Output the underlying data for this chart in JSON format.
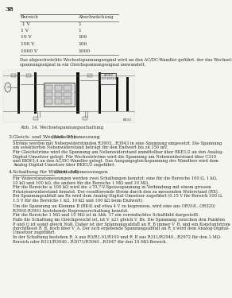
{
  "page_number": "38",
  "bg_color": "#f5f5f0",
  "text_color": "#2a2a2a",
  "table": {
    "header": [
      "Bereich",
      "Abschwächung"
    ],
    "rows": [
      [
        ".1 V",
        "1"
      ],
      [
        "1 V",
        "1"
      ],
      [
        "10 V",
        "100"
      ],
      [
        "100 V",
        "100"
      ],
      [
        "1000 V",
        "1000"
      ]
    ]
  },
  "paragraph1": "Das abgeschwächte Wechselspannungssignal wird an den AC/DC-Wandler geführt, der das Wechsel-\nspannungssignal in ein Gleichspannungssignal umwandelt.",
  "figure_caption": "Abb. 14. Wechselspannungsschaltung",
  "section3_title": "Gleich- und Wechselstrommessung",
  "section3_ref": "(Abb. 35)",
  "section3_text": "Ströme werden mit Nebenwiderständen R3903...R3943 in eine Spannung umgesetzt. Die Spannung\nam selektierten Nebenwiderstand beträgt für den Endwert bis zu 150 mV.\nFür Gleichströme wird die Spannung am Nebenwiderstand unmittelbar über BKE1/2 an den Analog-\nDigital-Umsetzer gelegt. Für Wechselströme wird die Spannung am Nebenwiderstand über C310\nund BKW3,4 an den AC/DC-Wandler gelegt. Das Ausgangsgleichspannung des Wandlers wird dem\nAnalog-Digital-Umsetzer über BKE1/2 zugeführt.",
  "section4_title": "Schaltung für Widerstandsmessungen",
  "section4_ref": "(Abb. 14)",
  "section4_text1": "Für Widerstandsmessungen werden zwei Schaltungen benutzt: eine für die Bereiche 100 Ω, 1 kΩ,\n10 kΩ und 100 kΩ, die andere für die Bereiche 1 MΩ und 10 MΩ.\nFür die Bereiche ≤ 100 kΩ wird die +70,7-V-Speisespannung in Verbindung mit einem grossen\nPräzisionswiderstand benutzt. Der resultierende Strom durch den zu messenden Widerstand (RX).\nBei Spannungsabfall am Rx wird dem Analog-Digital-Umsetzer zugeführt (0.15 V für Bereich 100 Ω,\n1.5 V für die Bereiche 1 kΩ, 10 kΩ und 100 kΩ beim Endwert).",
  "section4_text2": "Um die Spannung an Klemme B (BK4) auf etwa 4 V zu begrenzen, wird eine aus OR318...OR320/\nR3960-R3961 bestehende Begrenzerschaltung benutzt.\nFür die Bereiche 1 MΩ und 10 MΩ ist in Abb. 17 ein vereinfachtes Schaltbild dargestellt.\nFalls die Schaltung im Gleichgewicht ist, ist V_x21 gleich V_Bx. Die Spannung zwischen den Punkten\nP und Q ist somit gleich Null. Daher ist der Spannungsabfall an R_B immer V_B, und ein Konstantstrom\ndurchfliesst R_B, noch über V_A. Der sich ergebende Spannungsabfall an R_x wird dem Analog-Digital-\nUmsetzer zugeführt.\nIn der Schaltung bestehen R_A aus R3/R1.01/R100 und R_B aus R311/R2940...R2972 für den 1-MΩ-\nBereich oder R311/R3040...R3071/R3040...R3047 für den 10-MΩ-Bereich."
}
